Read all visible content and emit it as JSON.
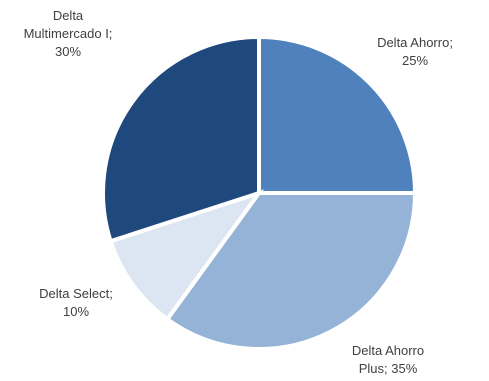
{
  "chart_data": {
    "type": "pie",
    "title": "",
    "legend": "none",
    "start_angle_deg": 0,
    "direction": "clockwise",
    "slices": [
      {
        "label_lines": [
          "Delta Ahorro;",
          "25%"
        ],
        "label": "Delta Ahorro",
        "value": 25,
        "color": "#4f81bd"
      },
      {
        "label_lines": [
          "Delta Ahorro",
          "Plus; 35%"
        ],
        "label": "Delta Ahorro Plus",
        "value": 35,
        "color": "#95b3d7"
      },
      {
        "label_lines": [
          "Delta Select;",
          "10%"
        ],
        "label": "Delta Select",
        "value": 10,
        "color": "#dce6f2"
      },
      {
        "label_lines": [
          "Delta",
          "Multimercado I;",
          "30%"
        ],
        "label": "Delta Multimercado I",
        "value": 30,
        "color": "#1f497d"
      }
    ]
  }
}
